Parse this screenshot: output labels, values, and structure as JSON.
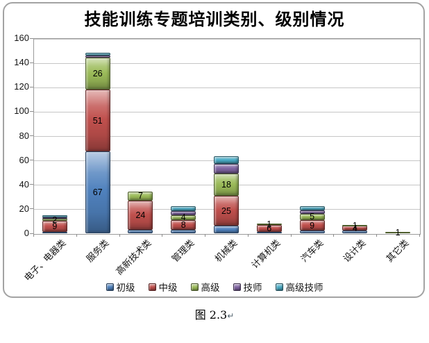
{
  "page": {
    "caption": "图 2.3",
    "return_mark": "↵"
  },
  "chart_data": {
    "type": "bar",
    "stacked": true,
    "title": "技能训练专题培训类别、级别情况",
    "categories": [
      "电子、电器类",
      "服务类",
      "高新技术类",
      "管理类",
      "机械类",
      "计算机类",
      "汽车类",
      "设计类",
      "其它类"
    ],
    "series": [
      {
        "name": "初级",
        "color": "#4F81BD",
        "values": [
          1,
          67,
          3,
          3,
          6,
          1,
          2,
          2,
          0
        ],
        "labels": [
          "",
          "67",
          "",
          "",
          "",
          "",
          "",
          "",
          ""
        ]
      },
      {
        "name": "中级",
        "color": "#C0504D",
        "values": [
          9,
          51,
          24,
          8,
          25,
          6,
          9,
          4,
          0
        ],
        "labels": [
          "9",
          "51",
          "24",
          "8",
          "25",
          "6",
          "9",
          "4",
          ""
        ]
      },
      {
        "name": "高级",
        "color": "#9BBB59",
        "values": [
          2,
          26,
          7,
          4,
          18,
          1,
          5,
          1,
          1
        ],
        "labels": [
          "2",
          "26",
          "7",
          "4",
          "18",
          "1",
          "5",
          "1",
          "1"
        ]
      },
      {
        "name": "技师",
        "color": "#8064A2",
        "values": [
          1,
          2,
          0,
          3,
          8,
          0,
          3,
          0,
          0
        ],
        "labels": [
          "",
          "",
          "",
          "",
          "",
          "",
          "",
          "",
          ""
        ]
      },
      {
        "name": "高级技师",
        "color": "#4BACC6",
        "values": [
          2,
          2,
          0,
          4,
          6,
          0,
          3,
          0,
          0
        ],
        "labels": [
          "",
          "",
          "",
          "",
          "",
          "",
          "",
          "",
          ""
        ]
      }
    ],
    "ylim": [
      0,
      160
    ],
    "ytick_step": 20,
    "yticks": [
      0,
      20,
      40,
      60,
      80,
      100,
      120,
      140,
      160
    ],
    "grid": true,
    "legend_position": "bottom",
    "totals": [
      15,
      148,
      34,
      22,
      63,
      8,
      22,
      7,
      1
    ]
  }
}
